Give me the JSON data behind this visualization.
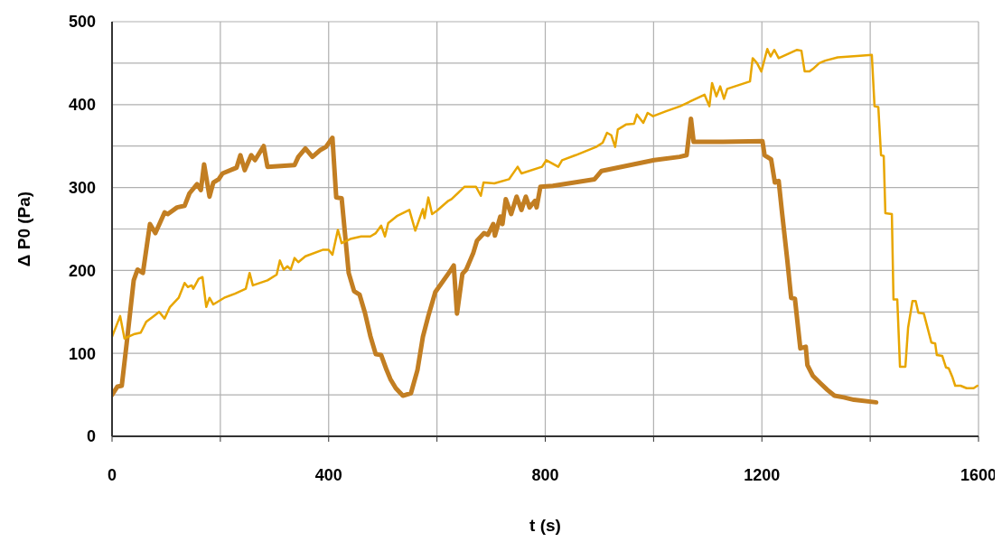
{
  "chart_data": {
    "type": "line",
    "xlabel": "t (s)",
    "ylabel": "Δ P0 (Pa)",
    "xlim": [
      0,
      1600
    ],
    "ylim": [
      0,
      500
    ],
    "xticks": [
      0,
      {
        "value": 200,
        "label": null
      },
      400,
      {
        "value": 600,
        "label": null
      },
      800,
      {
        "value": 1000,
        "label": null
      },
      1200,
      {
        "value": 1400,
        "label": null
      },
      1600
    ],
    "yticks": [
      0,
      {
        "value": 50,
        "label": null
      },
      100,
      {
        "value": 150,
        "label": null
      },
      200,
      {
        "value": 250,
        "label": null
      },
      300,
      {
        "value": 350,
        "label": null
      },
      400,
      {
        "value": 450,
        "label": null
      },
      500
    ],
    "grid": true,
    "marker": "none",
    "line_style": "solid",
    "series": [
      {
        "color": "#c27e22",
        "x": [
          0,
          10,
          18,
          27,
          40,
          47,
          57,
          70,
          80,
          97,
          103,
          120,
          134,
          143,
          157,
          164,
          170,
          180,
          187,
          197,
          204,
          230,
          237,
          245,
          257,
          264,
          280,
          287,
          337,
          344,
          357,
          370,
          384,
          395,
          407,
          414,
          424,
          437,
          447,
          457,
          467,
          477,
          487,
          497,
          507,
          514,
          524,
          537,
          552,
          564,
          574,
          584,
          597,
          624,
          631,
          637,
          647,
          654,
          667,
          674,
          687,
          694,
          704,
          707,
          717,
          721,
          727,
          737,
          747,
          756,
          764,
          771,
          781,
          784,
          791,
          814,
          891,
          904,
          1001,
          1048,
          1061,
          1069,
          1074,
          1128,
          1201,
          1205,
          1217,
          1224,
          1231,
          1237,
          1247,
          1254,
          1261,
          1271,
          1281,
          1284,
          1294,
          1308,
          1321,
          1334,
          1351,
          1370,
          1411
        ],
        "values": [
          50,
          60,
          61,
          112,
          188,
          201,
          197,
          256,
          245,
          270,
          268,
          276,
          278,
          293,
          304,
          297,
          328,
          289,
          306,
          310,
          317,
          324,
          339,
          321,
          339,
          333,
          350,
          325,
          327,
          337,
          347,
          337,
          345,
          349,
          360,
          288,
          287,
          197,
          175,
          171,
          149,
          121,
          99,
          98,
          80,
          69,
          58,
          49,
          52,
          80,
          120,
          145,
          174,
          199,
          206,
          148,
          196,
          201,
          221,
          236,
          245,
          243,
          256,
          242,
          265,
          256,
          286,
          268,
          289,
          273,
          289,
          276,
          284,
          276,
          301,
          302,
          310,
          320,
          333,
          337,
          339,
          383,
          355,
          355,
          356,
          339,
          334,
          306,
          308,
          271,
          212,
          167,
          166,
          106,
          108,
          86,
          73,
          64,
          56,
          49,
          47,
          44,
          41
        ]
      },
      {
        "color": "#e8a600",
        "x": [
          0,
          15,
          23,
          40,
          53,
          63,
          77,
          87,
          97,
          107,
          123,
          134,
          140,
          147,
          150,
          160,
          167,
          174,
          180,
          187,
          207,
          227,
          247,
          254,
          260,
          287,
          304,
          310,
          317,
          324,
          330,
          337,
          344,
          357,
          390,
          400,
          407,
          417,
          424,
          440,
          460,
          477,
          487,
          497,
          504,
          510,
          527,
          549,
          560,
          574,
          577,
          584,
          591,
          600,
          621,
          627,
          651,
          672,
          681,
          686,
          706,
          733,
          749,
          756,
          794,
          802,
          824,
          831,
          856,
          894,
          906,
          914,
          922,
          929,
          934,
          949,
          964,
          969,
          981,
          989,
          999,
          1023,
          1049,
          1094,
          1103,
          1108,
          1116,
          1123,
          1130,
          1136,
          1178,
          1183,
          1191,
          1199,
          1210,
          1216,
          1223,
          1231,
          1265,
          1273,
          1279,
          1288,
          1296,
          1306,
          1317,
          1340,
          1381,
          1403,
          1408,
          1415,
          1420,
          1425,
          1428,
          1440,
          1443,
          1450,
          1455,
          1465,
          1470,
          1478,
          1484,
          1489,
          1499,
          1505,
          1513,
          1520,
          1523,
          1533,
          1540,
          1545,
          1552,
          1557,
          1567,
          1578,
          1591,
          1598
        ],
        "values": [
          120,
          145,
          118,
          123,
          125,
          138,
          145,
          150,
          142,
          156,
          167,
          185,
          180,
          182,
          178,
          190,
          192,
          156,
          167,
          159,
          167,
          172,
          178,
          197,
          182,
          188,
          195,
          212,
          201,
          205,
          201,
          215,
          210,
          217,
          225,
          225,
          219,
          249,
          233,
          238,
          241,
          241,
          245,
          254,
          241,
          257,
          266,
          273,
          248,
          274,
          263,
          288,
          268,
          272,
          284,
          286,
          301,
          301,
          290,
          306,
          305,
          310,
          325,
          317,
          325,
          333,
          325,
          333,
          339,
          349,
          354,
          366,
          363,
          349,
          370,
          376,
          377,
          388,
          378,
          390,
          386,
          392,
          398,
          412,
          398,
          426,
          410,
          422,
          407,
          419,
          428,
          456,
          450,
          440,
          467,
          458,
          466,
          456,
          466,
          465,
          440,
          440,
          444,
          450,
          453,
          457,
          459,
          460,
          398,
          397,
          339,
          338,
          269,
          268,
          165,
          165,
          84,
          84,
          131,
          163,
          163,
          149,
          148,
          133,
          113,
          112,
          98,
          97,
          83,
          82,
          71,
          61,
          61,
          58,
          58,
          61
        ]
      }
    ]
  }
}
